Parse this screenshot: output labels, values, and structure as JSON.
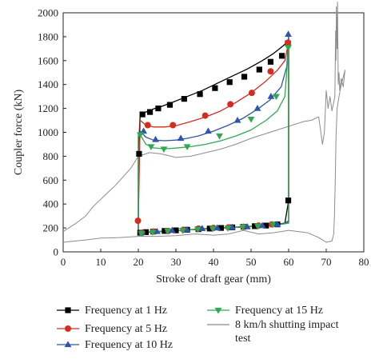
{
  "chart_data": {
    "type": "line",
    "xlabel": "Stroke of draft gear (mm)",
    "ylabel": "Coupler force (kN)",
    "xlim": [
      0,
      80
    ],
    "ylim": [
      0,
      2000
    ],
    "xticks": [
      "0",
      "10",
      "20",
      "30",
      "40",
      "50",
      "60",
      "70",
      "80"
    ],
    "yticks": [
      "0",
      "200",
      "400",
      "600",
      "800",
      "1000",
      "1200",
      "1400",
      "1600",
      "1800",
      "2000"
    ],
    "legend_placement": "bottom",
    "series": [
      {
        "name": "Frequency at 1 Hz",
        "color": "#000000",
        "marker": "square",
        "x": [
          20,
          20,
          20.5,
          22,
          24,
          26,
          29,
          33,
          37,
          41,
          45,
          49,
          53,
          56,
          58,
          59.5,
          60,
          60,
          59,
          57,
          55,
          52,
          49,
          46,
          43,
          40,
          37,
          34,
          31,
          28,
          25,
          22,
          20.5,
          20
        ],
        "y": [
          160,
          820,
          1150,
          1170,
          1195,
          1215,
          1250,
          1300,
          1350,
          1410,
          1470,
          1530,
          1600,
          1660,
          1710,
          1750,
          1780,
          430,
          240,
          230,
          220,
          215,
          210,
          205,
          200,
          195,
          190,
          185,
          180,
          175,
          170,
          165,
          160,
          160
        ],
        "mx": [
          20.2,
          21.1,
          23.1,
          25.3,
          28.4,
          32.2,
          36.4,
          40.4,
          44.3,
          48.2,
          52.2,
          55.2,
          58.2,
          59.8,
          59.9,
          57,
          54,
          51,
          48,
          45,
          42,
          39,
          36,
          33,
          30,
          27,
          24,
          22,
          20.5
        ],
        "my": [
          820,
          1150,
          1170,
          1200,
          1230,
          1280,
          1320,
          1370,
          1420,
          1465,
          1525,
          1590,
          1640,
          1745,
          430,
          230,
          220,
          215,
          210,
          205,
          200,
          195,
          190,
          185,
          180,
          175,
          170,
          165,
          160
        ]
      },
      {
        "name": "Frequency at 5 Hz",
        "color": "#d62c1f",
        "marker": "circle",
        "x": [
          20,
          20,
          20.5,
          22,
          24,
          27,
          30,
          34,
          38,
          42,
          46,
          50,
          54,
          57,
          59,
          60,
          60,
          59,
          56,
          53,
          50,
          47,
          44,
          41,
          38,
          35,
          32,
          29,
          26,
          23,
          21,
          20
        ],
        "y": [
          150,
          260,
          1100,
          1060,
          1045,
          1045,
          1055,
          1090,
          1130,
          1180,
          1250,
          1330,
          1430,
          1520,
          1600,
          1760,
          260,
          240,
          230,
          220,
          215,
          210,
          205,
          200,
          195,
          190,
          180,
          175,
          170,
          165,
          160,
          150
        ],
        "mx": [
          19.9,
          22.5,
          29.2,
          37.8,
          44.5,
          50.2,
          55.2,
          59.8,
          55.5,
          52,
          48,
          44,
          40,
          36,
          32,
          28,
          24,
          21
        ],
        "my": [
          260,
          1060,
          1060,
          1140,
          1235,
          1330,
          1510,
          1750,
          230,
          220,
          210,
          205,
          200,
          195,
          185,
          175,
          170,
          160
        ]
      },
      {
        "name": "Frequency at 10 Hz",
        "color": "#2e56a8",
        "marker": "triangle-up",
        "x": [
          20,
          20,
          20.5,
          22,
          24,
          27,
          30,
          33,
          36,
          40,
          44,
          48,
          52,
          55,
          58,
          59.5,
          60,
          60,
          58,
          55,
          52,
          49,
          46,
          43,
          40,
          37,
          34,
          31,
          28,
          25,
          22,
          20
        ],
        "y": [
          160,
          960,
          1010,
          960,
          935,
          930,
          935,
          950,
          970,
          1010,
          1060,
          1120,
          1200,
          1270,
          1380,
          1550,
          1820,
          250,
          235,
          225,
          215,
          210,
          205,
          200,
          195,
          190,
          185,
          180,
          175,
          170,
          165,
          160
        ],
        "mx": [
          21.4,
          24.6,
          31.3,
          38.6,
          46.4,
          51.7,
          55.3,
          59.9,
          57,
          53,
          49,
          45,
          41,
          37,
          33,
          29,
          25,
          21
        ],
        "my": [
          1010,
          940,
          950,
          1010,
          1100,
          1200,
          1300,
          1820,
          230,
          220,
          210,
          205,
          200,
          195,
          185,
          180,
          170,
          160
        ]
      },
      {
        "name": "Frequency at 15 Hz",
        "color": "#2fa84f",
        "marker": "triangle-down",
        "x": [
          20,
          20,
          20.5,
          22,
          24,
          27,
          30,
          34,
          38,
          42,
          46,
          50,
          54,
          57,
          59,
          60,
          60,
          58,
          55,
          52,
          49,
          46,
          43,
          40,
          37,
          34,
          31,
          28,
          25,
          22,
          20
        ],
        "y": [
          150,
          990,
          980,
          900,
          870,
          862,
          868,
          880,
          900,
          930,
          970,
          1020,
          1100,
          1180,
          1300,
          1720,
          240,
          230,
          220,
          215,
          210,
          205,
          200,
          195,
          190,
          185,
          180,
          175,
          165,
          160,
          150
        ],
        "mx": [
          20.5,
          23.4,
          26.8,
          33,
          41.6,
          50,
          56.7,
          59.9,
          55.8,
          51.8,
          47.8,
          43.8,
          39.8,
          35.8,
          31.8,
          27.8,
          23.8,
          20.8
        ],
        "my": [
          980,
          880,
          860,
          880,
          970,
          1110,
          1300,
          1710,
          230,
          215,
          210,
          200,
          195,
          190,
          180,
          175,
          165,
          155
        ]
      },
      {
        "name": "8 km/h shutting impact test",
        "color": "#8c8c8c",
        "marker": "none",
        "x": [
          0,
          3,
          6,
          8,
          10,
          12,
          14,
          16,
          18,
          19,
          20,
          23,
          26,
          30,
          34,
          38,
          42,
          46,
          50,
          54,
          58,
          61,
          64,
          66,
          68,
          69,
          69.5,
          70,
          70.5,
          71,
          71.5,
          72,
          72.3,
          72.5,
          72.6,
          72.7,
          72.9,
          73,
          73.2,
          73.4,
          73.6,
          74,
          74.5,
          75,
          74,
          73.4,
          72.9,
          72.6,
          72.4,
          72.2,
          72,
          71.5,
          70,
          69,
          68,
          65,
          60,
          56,
          52,
          48,
          44,
          40,
          35,
          30,
          25,
          20,
          15,
          10,
          6,
          3,
          0
        ],
        "y": [
          170,
          230,
          300,
          380,
          440,
          500,
          560,
          630,
          700,
          750,
          800,
          830,
          820,
          790,
          800,
          830,
          860,
          900,
          950,
          990,
          1030,
          1060,
          1090,
          1100,
          1130,
          900,
          1000,
          1350,
          1200,
          1300,
          1180,
          1250,
          1300,
          1850,
          1600,
          2050,
          1700,
          2090,
          1400,
          1500,
          1350,
          1450,
          1380,
          1520,
          1400,
          1300,
          1200,
          950,
          600,
          300,
          150,
          90,
          80,
          100,
          120,
          160,
          180,
          160,
          150,
          180,
          150,
          140,
          150,
          135,
          130,
          130,
          120,
          115,
          100,
          90,
          80
        ]
      }
    ]
  }
}
